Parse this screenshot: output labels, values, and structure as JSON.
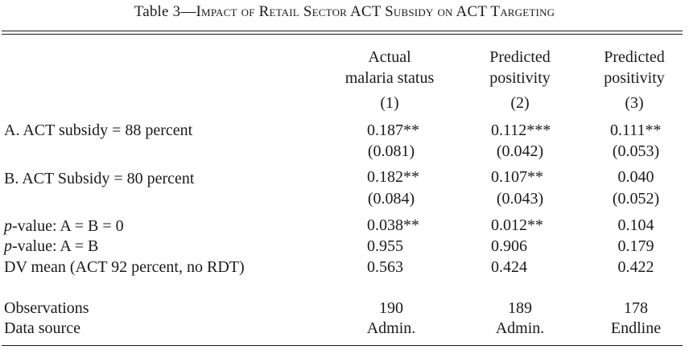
{
  "caption": {
    "prefix": "Table 3",
    "dash": "—",
    "title": "Impact of Retail Sector ACT Subsidy on ACT Targeting"
  },
  "columns": [
    {
      "line1": "Actual",
      "line2": "malaria status",
      "num": "(1)"
    },
    {
      "line1": "Predicted",
      "line2": "positivity",
      "num": "(2)"
    },
    {
      "line1": "Predicted",
      "line2": "positivity",
      "num": "(3)"
    }
  ],
  "rows": {
    "a": {
      "label": "A. ACT subsidy = 88 percent",
      "values": [
        "0.187**",
        "0.112***",
        "0.111**"
      ],
      "se": [
        "(0.081)",
        "(0.042)",
        "(0.053)"
      ]
    },
    "b": {
      "label": "B. ACT Subsidy = 80 percent",
      "values": [
        "0.182**",
        "0.107**",
        "0.040"
      ],
      "se": [
        "(0.084)",
        "(0.043)",
        "(0.052)"
      ]
    },
    "pab0": {
      "label_italic": "p",
      "label_rest": "-value: A = B = 0",
      "values": [
        "0.038**",
        "0.012**",
        "0.104"
      ]
    },
    "pab": {
      "label_italic": "p",
      "label_rest": "-value: A = B",
      "values": [
        "0.955",
        "0.906",
        "0.179"
      ]
    },
    "dv": {
      "label": "DV mean (ACT 92 percent, no RDT)",
      "values": [
        "0.563",
        "0.424",
        "0.422"
      ]
    },
    "obs": {
      "label": "Observations",
      "values": [
        "190",
        "189",
        "178"
      ]
    },
    "src": {
      "label": "Data source",
      "values": [
        "Admin.",
        "Admin.",
        "Endline"
      ]
    }
  }
}
